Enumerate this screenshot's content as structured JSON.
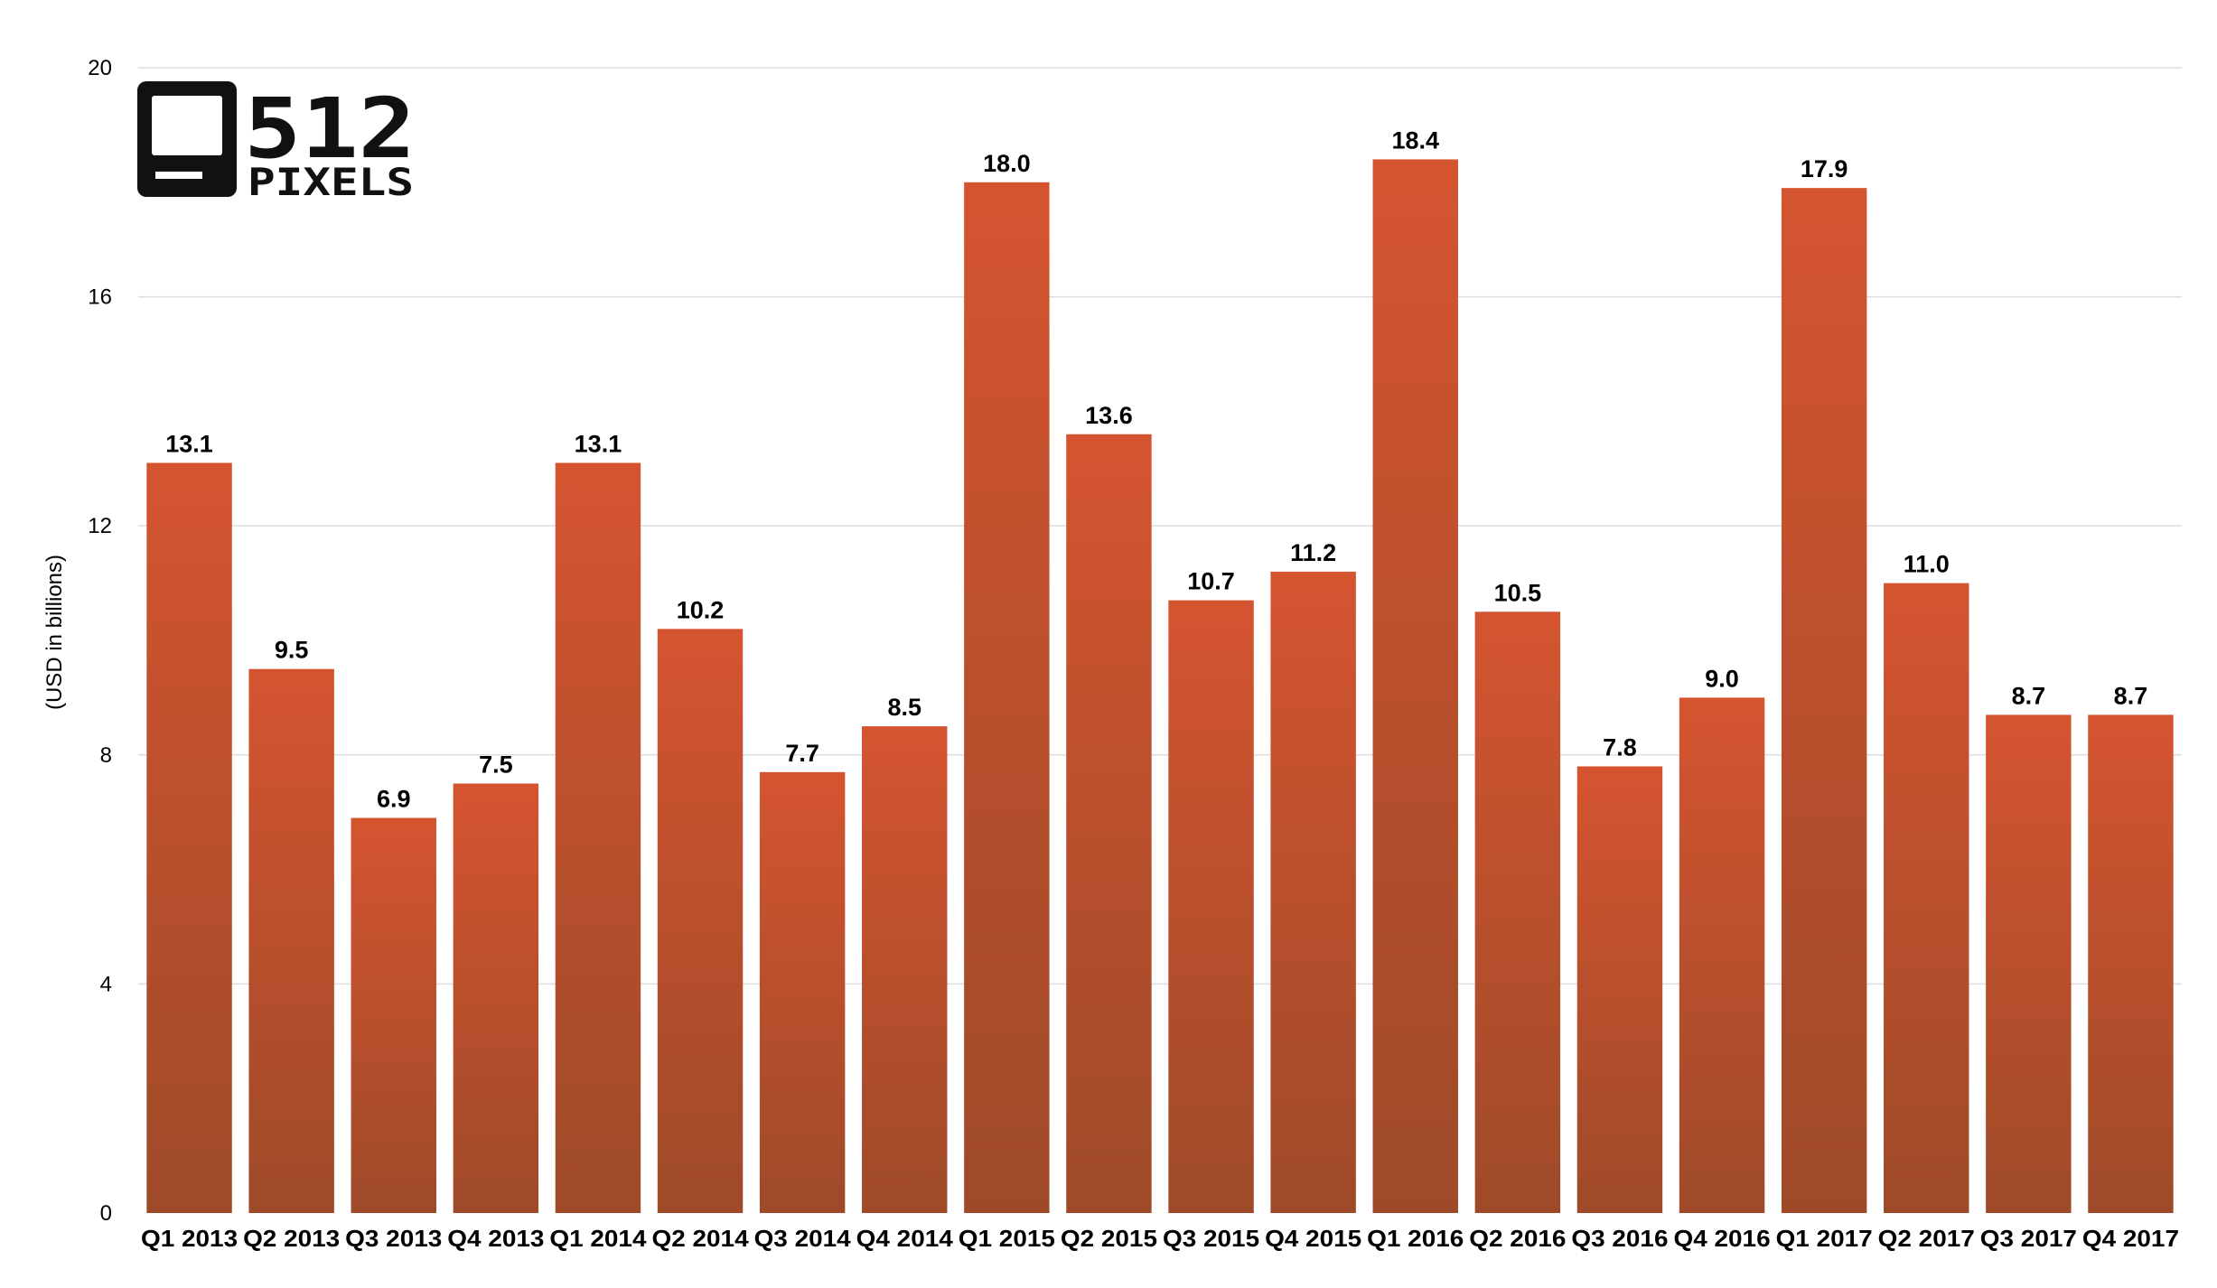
{
  "logo": {
    "number": "512",
    "word": "PIXELS"
  },
  "chart_data": {
    "type": "bar",
    "title": "",
    "xlabel": "",
    "ylabel": "(USD in billions)",
    "ylim": [
      0,
      20
    ],
    "yticks": [
      0,
      4,
      8,
      12,
      16,
      20
    ],
    "grid": true,
    "bar_color_top": "#D55430",
    "bar_color_bottom": "#9E4A29",
    "categories": [
      "Q1 2013",
      "Q2 2013",
      "Q3 2013",
      "Q4 2013",
      "Q1 2014",
      "Q2 2014",
      "Q3 2014",
      "Q4 2014",
      "Q1 2015",
      "Q2 2015",
      "Q3 2015",
      "Q4 2015",
      "Q1 2016",
      "Q2 2016",
      "Q3 2016",
      "Q4 2016",
      "Q1 2017",
      "Q2 2017",
      "Q3 2017",
      "Q4 2017"
    ],
    "values": [
      13.1,
      9.5,
      6.9,
      7.5,
      13.1,
      10.2,
      7.7,
      8.5,
      18.0,
      13.6,
      10.7,
      11.2,
      18.4,
      10.5,
      7.8,
      9.0,
      17.9,
      11.0,
      8.7,
      8.7
    ],
    "value_labels": [
      "13.1",
      "9.5",
      "6.9",
      "7.5",
      "13.1",
      "10.2",
      "7.7",
      "8.5",
      "18.0",
      "13.6",
      "10.7",
      "11.2",
      "18.4",
      "10.5",
      "7.8",
      "9.0",
      "17.9",
      "11.0",
      "8.7",
      "8.7"
    ]
  }
}
